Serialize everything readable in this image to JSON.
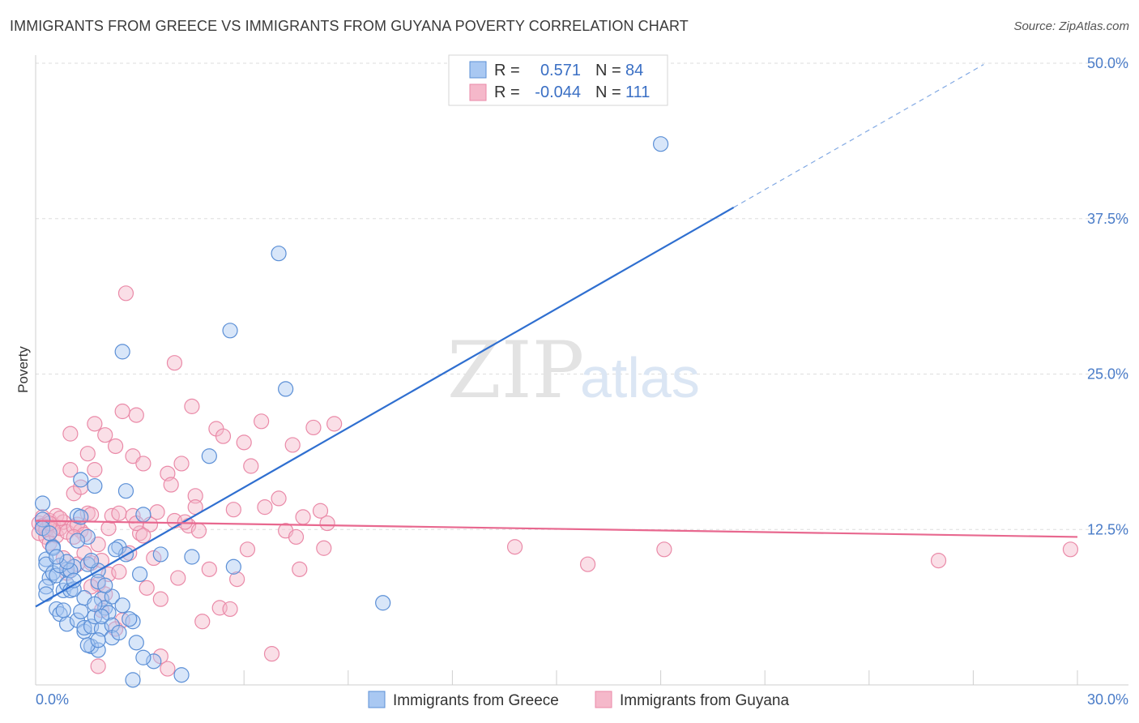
{
  "title": "IMMIGRANTS FROM GREECE VS IMMIGRANTS FROM GUYANA POVERTY CORRELATION CHART",
  "source": "Source: ZipAtlas.com",
  "watermark": {
    "zip": "ZIP",
    "atlas": "atlas"
  },
  "legend": {
    "rows": [
      {
        "r_label": "R =",
        "r_value": "0.571",
        "n_label": "N =",
        "n_value": "84",
        "color": "#a9c8f2"
      },
      {
        "r_label": "R =",
        "r_value": "-0.044",
        "n_label": "N =",
        "n_value": "111",
        "color": "#f5b8ca"
      }
    ]
  },
  "bottom_legend": {
    "greece": "Immigrants from Greece",
    "guyana": "Immigrants from Guyana"
  },
  "colors": {
    "greece_fill": "#a9c8f2",
    "greece_stroke": "#5b8fd6",
    "greece_line": "#2f6fd0",
    "guyana_fill": "#f5b8ca",
    "guyana_stroke": "#ea8aa8",
    "guyana_line": "#e8688f",
    "tick_label": "#4a7cc8"
  },
  "chart_data": {
    "type": "scatter",
    "title": "IMMIGRANTS FROM GREECE VS IMMIGRANTS FROM GUYANA POVERTY CORRELATION CHART",
    "xlabel": "",
    "ylabel": "Poverty",
    "xlim": [
      0,
      30
    ],
    "ylim": [
      0,
      50
    ],
    "x_tick_labels": [
      "0.0%",
      "30.0%"
    ],
    "y_ticks": [
      12.5,
      25,
      37.5,
      50
    ],
    "y_tick_labels": [
      "12.5%",
      "25.0%",
      "37.5%",
      "50.0%"
    ],
    "grid": true,
    "legend_position": "top-center",
    "series": [
      {
        "name": "Immigrants from Greece",
        "r": 0.571,
        "n": 84,
        "trend": {
          "x0": 0,
          "y0": 6.3,
          "x1": 20.1,
          "y1": 38.4,
          "dashed_to_x": 27.3
        },
        "points": [
          [
            0.2,
            14.6
          ],
          [
            0.2,
            13.3
          ],
          [
            0.2,
            12.6
          ],
          [
            0.3,
            10.1
          ],
          [
            0.3,
            9.7
          ],
          [
            0.4,
            8.6
          ],
          [
            0.3,
            7.9
          ],
          [
            0.5,
            9.0
          ],
          [
            0.6,
            8.8
          ],
          [
            0.5,
            11.1
          ],
          [
            0.6,
            6.1
          ],
          [
            0.7,
            5.7
          ],
          [
            0.8,
            7.6
          ],
          [
            0.9,
            8.1
          ],
          [
            0.9,
            9.3
          ],
          [
            0.9,
            4.9
          ],
          [
            1.0,
            7.6
          ],
          [
            1.1,
            9.5
          ],
          [
            1.1,
            7.7
          ],
          [
            1.2,
            13.6
          ],
          [
            1.2,
            5.2
          ],
          [
            1.3,
            16.5
          ],
          [
            1.3,
            5.9
          ],
          [
            1.4,
            4.3
          ],
          [
            1.4,
            4.6
          ],
          [
            1.5,
            9.7
          ],
          [
            1.5,
            11.9
          ],
          [
            1.6,
            4.7
          ],
          [
            1.6,
            3.1
          ],
          [
            1.7,
            5.5
          ],
          [
            1.7,
            16.0
          ],
          [
            1.8,
            9.2
          ],
          [
            1.8,
            2.8
          ],
          [
            1.8,
            8.3
          ],
          [
            1.9,
            6.9
          ],
          [
            1.9,
            4.5
          ],
          [
            2.0,
            6.2
          ],
          [
            2.1,
            5.8
          ],
          [
            2.2,
            4.8
          ],
          [
            2.2,
            7.1
          ],
          [
            2.4,
            11.1
          ],
          [
            2.5,
            26.8
          ],
          [
            2.6,
            15.6
          ],
          [
            2.5,
            6.4
          ],
          [
            2.6,
            10.5
          ],
          [
            2.8,
            5.1
          ],
          [
            2.9,
            3.4
          ],
          [
            3.0,
            8.9
          ],
          [
            3.1,
            13.7
          ],
          [
            3.4,
            1.9
          ],
          [
            3.6,
            10.5
          ],
          [
            4.2,
            0.8
          ],
          [
            4.5,
            10.3
          ],
          [
            5.0,
            18.4
          ],
          [
            5.6,
            28.5
          ],
          [
            5.7,
            9.5
          ],
          [
            7.0,
            34.7
          ],
          [
            7.2,
            23.8
          ],
          [
            10.0,
            6.6
          ],
          [
            18.0,
            43.5
          ],
          [
            2.8,
            0.4
          ],
          [
            1.2,
            11.6
          ],
          [
            0.7,
            9.6
          ],
          [
            1.0,
            9.2
          ],
          [
            2.3,
            10.9
          ],
          [
            0.3,
            7.3
          ],
          [
            1.5,
            3.2
          ],
          [
            2.7,
            5.3
          ],
          [
            3.1,
            2.2
          ],
          [
            1.9,
            5.5
          ],
          [
            0.8,
            6.0
          ],
          [
            1.3,
            13.5
          ],
          [
            1.6,
            10.0
          ],
          [
            2.0,
            8.0
          ],
          [
            0.5,
            11.0
          ],
          [
            0.9,
            9.9
          ],
          [
            1.1,
            8.4
          ],
          [
            1.4,
            7.0
          ],
          [
            2.2,
            3.8
          ],
          [
            0.4,
            12.2
          ],
          [
            1.7,
            6.5
          ],
          [
            0.6,
            10.3
          ],
          [
            2.4,
            4.2
          ],
          [
            1.8,
            3.6
          ]
        ]
      },
      {
        "name": "Immigrants from Guyana",
        "r": -0.044,
        "n": 111,
        "trend": {
          "x0": 0,
          "y0": 13.2,
          "x1": 30,
          "y1": 11.9
        },
        "points": [
          [
            0.1,
            13.0
          ],
          [
            0.1,
            12.2
          ],
          [
            0.2,
            13.5
          ],
          [
            0.2,
            12.8
          ],
          [
            0.3,
            11.9
          ],
          [
            0.3,
            12.5
          ],
          [
            0.4,
            13.2
          ],
          [
            0.4,
            11.4
          ],
          [
            0.5,
            12.9
          ],
          [
            0.6,
            13.6
          ],
          [
            0.6,
            12.0
          ],
          [
            0.7,
            12.6
          ],
          [
            0.8,
            13.1
          ],
          [
            0.8,
            10.2
          ],
          [
            0.9,
            12.3
          ],
          [
            1.0,
            20.2
          ],
          [
            1.0,
            17.3
          ],
          [
            1.1,
            12.7
          ],
          [
            1.1,
            15.4
          ],
          [
            1.2,
            9.7
          ],
          [
            1.3,
            15.9
          ],
          [
            1.3,
            12.4
          ],
          [
            1.4,
            10.6
          ],
          [
            1.5,
            13.8
          ],
          [
            1.5,
            18.6
          ],
          [
            1.6,
            9.8
          ],
          [
            1.6,
            13.7
          ],
          [
            1.7,
            17.3
          ],
          [
            1.7,
            21.0
          ],
          [
            1.8,
            8.1
          ],
          [
            1.8,
            11.3
          ],
          [
            1.9,
            10.0
          ],
          [
            1.9,
            6.0
          ],
          [
            2.0,
            20.1
          ],
          [
            2.1,
            12.6
          ],
          [
            2.1,
            8.9
          ],
          [
            2.2,
            13.6
          ],
          [
            2.3,
            19.2
          ],
          [
            2.4,
            9.1
          ],
          [
            2.4,
            13.8
          ],
          [
            2.5,
            22.0
          ],
          [
            2.5,
            5.2
          ],
          [
            2.6,
            31.5
          ],
          [
            2.7,
            10.6
          ],
          [
            2.8,
            13.6
          ],
          [
            2.8,
            18.4
          ],
          [
            2.9,
            21.7
          ],
          [
            3.0,
            12.2
          ],
          [
            3.1,
            17.8
          ],
          [
            3.2,
            7.8
          ],
          [
            3.3,
            12.9
          ],
          [
            3.4,
            10.2
          ],
          [
            3.5,
            13.9
          ],
          [
            3.6,
            6.9
          ],
          [
            3.8,
            17.0
          ],
          [
            3.9,
            16.1
          ],
          [
            4.0,
            25.9
          ],
          [
            4.0,
            13.2
          ],
          [
            4.1,
            8.6
          ],
          [
            4.2,
            17.8
          ],
          [
            4.4,
            12.8
          ],
          [
            4.5,
            22.4
          ],
          [
            4.6,
            15.2
          ],
          [
            4.6,
            14.3
          ],
          [
            4.7,
            12.4
          ],
          [
            4.8,
            5.1
          ],
          [
            5.0,
            9.3
          ],
          [
            5.2,
            20.6
          ],
          [
            5.3,
            6.2
          ],
          [
            5.4,
            20.0
          ],
          [
            5.7,
            14.1
          ],
          [
            5.8,
            8.5
          ],
          [
            6.0,
            19.5
          ],
          [
            6.1,
            10.9
          ],
          [
            6.2,
            17.6
          ],
          [
            6.5,
            21.2
          ],
          [
            6.6,
            14.3
          ],
          [
            6.8,
            2.5
          ],
          [
            7.0,
            15.0
          ],
          [
            7.2,
            12.4
          ],
          [
            7.4,
            19.3
          ],
          [
            7.5,
            11.9
          ],
          [
            7.6,
            9.3
          ],
          [
            7.7,
            13.5
          ],
          [
            8.0,
            20.7
          ],
          [
            8.2,
            14.0
          ],
          [
            8.3,
            11.0
          ],
          [
            8.4,
            13.0
          ],
          [
            8.6,
            21.0
          ],
          [
            13.8,
            11.1
          ],
          [
            15.9,
            9.7
          ],
          [
            18.1,
            10.9
          ],
          [
            26.0,
            10.0
          ],
          [
            29.8,
            10.9
          ],
          [
            1.2,
            12.9
          ],
          [
            0.9,
            9.0
          ],
          [
            2.0,
            7.3
          ],
          [
            3.6,
            2.3
          ],
          [
            1.8,
            1.5
          ],
          [
            3.8,
            1.3
          ],
          [
            2.3,
            4.5
          ],
          [
            1.4,
            12.1
          ],
          [
            0.5,
            12.5
          ],
          [
            0.7,
            13.4
          ],
          [
            2.9,
            13.0
          ],
          [
            4.3,
            13.1
          ],
          [
            1.1,
            11.9
          ],
          [
            0.4,
            13.0
          ],
          [
            5.6,
            6.1
          ],
          [
            3.1,
            12.0
          ],
          [
            1.6,
            7.9
          ]
        ]
      }
    ]
  }
}
